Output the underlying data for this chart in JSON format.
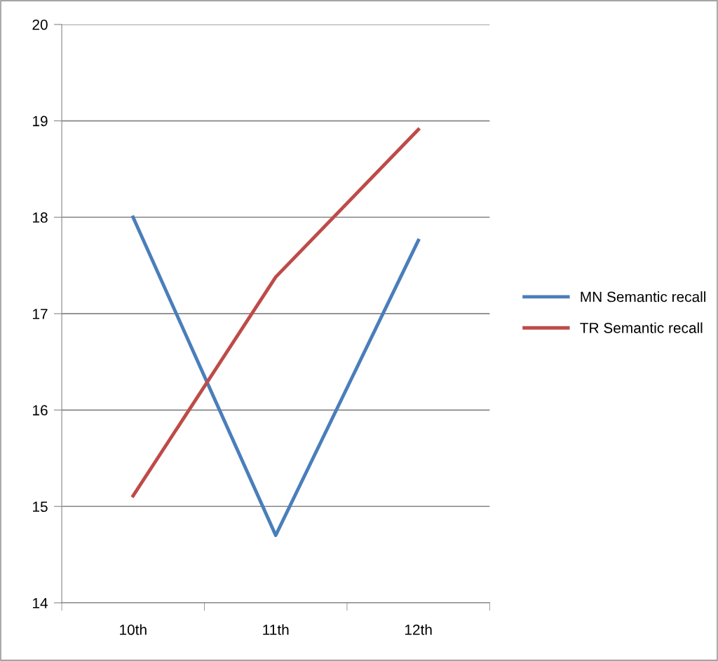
{
  "chart_data": {
    "type": "line",
    "categories": [
      "10th",
      "11th",
      "12th"
    ],
    "series": [
      {
        "name": "MN Semantic recall",
        "color": "#4a7ebb",
        "values": [
          18.0,
          14.7,
          17.76
        ]
      },
      {
        "name": "TR Semantic recall",
        "color": "#be4b48",
        "values": [
          15.11,
          17.38,
          18.91
        ]
      }
    ],
    "ylim": [
      14,
      20
    ],
    "yticks": [
      14,
      15,
      16,
      17,
      18,
      19,
      20
    ],
    "grid": "y",
    "legend": "right",
    "marker": "none",
    "line_style": "solid"
  }
}
